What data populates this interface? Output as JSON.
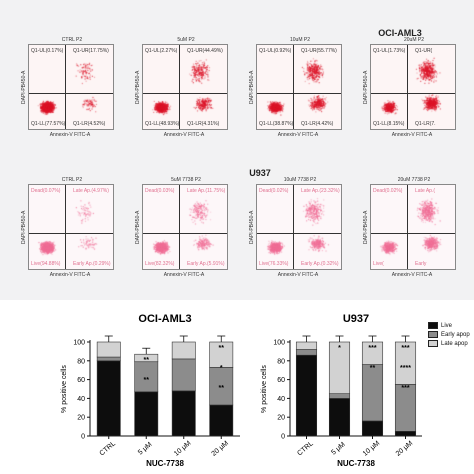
{
  "flow": {
    "row1_title": "OCI-AML3",
    "row2_title": "U937",
    "x_axis": "Annexin-V FITC-A",
    "y_axis": "DAPI-PB450-A",
    "row1": [
      {
        "head": "CTRL   P2",
        "ul": "Q1-UL(0.17%)",
        "ur": "Q1-UR(17.75%)",
        "ll": "Q1-LL(77.57%)",
        "lr": "Q1-LR(4.52%)",
        "spread": 0.15
      },
      {
        "head": "5uM   P2",
        "ul": "Q1-UL(2.27%)",
        "ur": "Q1-UR(44.49%)",
        "ll": "Q1-LL(48.93%)",
        "lr": "Q1-LR(4.31%)",
        "spread": 0.45
      },
      {
        "head": "10uM   P2",
        "ul": "Q1-UL(0.92%)",
        "ur": "Q1-UR(55.77%)",
        "ll": "Q1-LL(38.87%)",
        "lr": "Q1-LR(4.42%)",
        "spread": 0.6
      },
      {
        "head": "20uM   P2",
        "ul": "Q1-UL(1.73%)",
        "ur": "Q1-UR(",
        "ll": "Q1-LL(8.15%)",
        "lr": "Q1-LR(7.",
        "spread": 0.85
      }
    ],
    "row2": [
      {
        "head": "CTRL   P2",
        "ul": "Dead(0.07%)",
        "ur": "Late Ap.(4.97%)",
        "ll": "Live(94.88%)",
        "lr": "Early Ap.(0.29%)",
        "spread": 0.1
      },
      {
        "head": "5uM 7738   P2",
        "ul": "Dead(0.03%)",
        "ur": "Late Ap.(11.75%)",
        "ll": "Live(82.32%)",
        "lr": "Early Ap.(5.91%)",
        "spread": 0.35
      },
      {
        "head": "10uM 7738   P2",
        "ul": "Dead(0.02%)",
        "ur": "Late Ap.(23.32%)",
        "ll": "Live(76.33%)",
        "lr": "Early Ap.(0.32%)",
        "spread": 0.5
      },
      {
        "head": "20uM 7738   P2",
        "ul": "Dead(0.02%)",
        "ur": "Late Ap.(",
        "ll": "Live(",
        "lr": "Early",
        "spread": 0.8
      }
    ]
  },
  "chart_data": [
    {
      "type": "bar",
      "stacked": true,
      "title": "OCI-AML3",
      "ylabel": "% positive cells",
      "xlabel": "NUC-7738",
      "categories": [
        "CTRL",
        "5 μM",
        "10 μM",
        "20 μM"
      ],
      "ylim": [
        0,
        100
      ],
      "yticks": [
        0,
        20,
        40,
        60,
        80,
        100
      ],
      "series": [
        {
          "name": "Live",
          "color": "#0d0d0d",
          "values": [
            80,
            47,
            48,
            33
          ]
        },
        {
          "name": "Early apoptosis",
          "color": "#8c8c8c",
          "values": [
            4,
            32,
            34,
            40
          ]
        },
        {
          "name": "Late apoptosis",
          "color": "#d2d2d2",
          "values": [
            16,
            8,
            18,
            27
          ]
        }
      ],
      "annotations": [
        {
          "category": "5 μM",
          "texts": [
            "**",
            "**"
          ]
        },
        {
          "category": "10 μM",
          "texts": []
        },
        {
          "category": "20 μM",
          "texts": [
            "**",
            "*",
            "**"
          ]
        }
      ]
    },
    {
      "type": "bar",
      "stacked": true,
      "title": "U937",
      "ylabel": "% positive cells",
      "xlabel": "NUC-7738",
      "categories": [
        "CTRL",
        "5 μM",
        "10 μM",
        "20 μM"
      ],
      "ylim": [
        0,
        100
      ],
      "yticks": [
        0,
        20,
        40,
        60,
        80,
        100
      ],
      "series": [
        {
          "name": "Live",
          "color": "#0d0d0d",
          "values": [
            86,
            40,
            16,
            5
          ]
        },
        {
          "name": "Early apoptosis",
          "color": "#8c8c8c",
          "values": [
            6,
            5,
            60,
            50
          ]
        },
        {
          "name": "Late apoptosis",
          "color": "#d2d2d2",
          "values": [
            8,
            55,
            24,
            45
          ]
        }
      ],
      "annotations": [
        {
          "category": "5 μM",
          "texts": [
            "*"
          ]
        },
        {
          "category": "10 μM",
          "texts": [
            "***",
            "**"
          ]
        },
        {
          "category": "20 μM",
          "texts": [
            "***",
            "****",
            "***"
          ]
        }
      ]
    }
  ],
  "legend": [
    "Live",
    "Early apop",
    "Late apop"
  ]
}
